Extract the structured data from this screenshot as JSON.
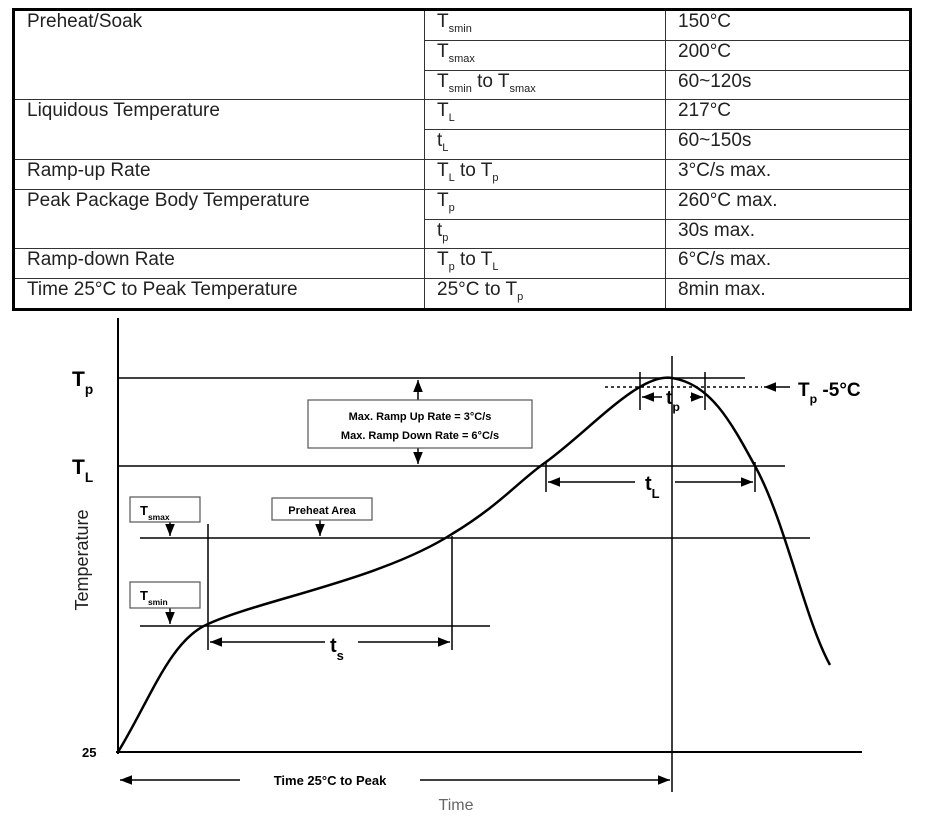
{
  "table": {
    "groups": [
      {
        "label": "Preheat/Soak",
        "items": [
          {
            "symbol": [
              "T",
              "smin"
            ],
            "value": "150°C"
          },
          {
            "symbol": [
              "T",
              "smax"
            ],
            "value": "200°C"
          },
          {
            "symbol": [
              "T",
              "smin",
              " to T",
              "smax"
            ],
            "value": "60~120s"
          }
        ]
      },
      {
        "label": "Liquidous Temperature",
        "items": [
          {
            "symbol": [
              "T",
              "L"
            ],
            "value": "217°C"
          },
          {
            "symbol": [
              "t",
              "L"
            ],
            "value": "60~150s"
          }
        ]
      },
      {
        "label": "Ramp-up Rate",
        "items": [
          {
            "symbol": [
              "T",
              "L",
              " to T",
              "p"
            ],
            "value": "3°C/s max."
          }
        ]
      },
      {
        "label": "Peak Package Body Temperature",
        "items": [
          {
            "symbol": [
              "T",
              "p"
            ],
            "value": "260°C max."
          },
          {
            "symbol": [
              "t",
              "p"
            ],
            "value": "30s max."
          }
        ]
      },
      {
        "label": "Ramp-down Rate",
        "items": [
          {
            "symbol": [
              "T",
              "p",
              " to T",
              "L"
            ],
            "value": "6°C/s max."
          }
        ]
      },
      {
        "label": "Time 25°C to Peak Temperature",
        "items": [
          {
            "symbol": [
              "25°C to T",
              "p"
            ],
            "value": "8min max."
          }
        ]
      }
    ]
  },
  "diagram": {
    "y_axis_label": "Temperature",
    "x_axis_label": "Time",
    "y_labels": {
      "tp": [
        "T",
        "p"
      ],
      "tl": [
        "T",
        "L"
      ],
      "origin": "25"
    },
    "callouts": {
      "tsmax": [
        "T",
        "smax"
      ],
      "tsmin": [
        "T",
        "smin"
      ],
      "preheat": "Preheat Area",
      "ramp_up": "Max. Ramp Up Rate = 3°C/s",
      "ramp_down": "Max. Ramp Down Rate = 6°C/s",
      "tp_minus": [
        "T",
        "p",
        " -5°C"
      ]
    },
    "intervals": {
      "ts": [
        "t",
        "s"
      ],
      "tl": [
        "t",
        "L"
      ],
      "tp": [
        "t",
        "p"
      ],
      "time_to_peak": "Time 25°C to Peak"
    }
  }
}
